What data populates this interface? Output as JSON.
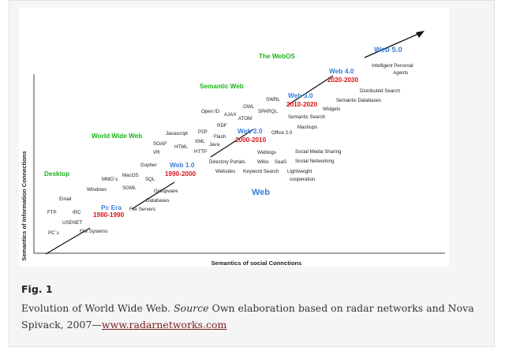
{
  "figure": {
    "number": "Fig. 1",
    "caption_part1": "Evolution of World Wide Web. ",
    "caption_source_word": "Source",
    "caption_part2": " Own elaboration based on radar networks and Nova Spivack, 2007—",
    "caption_link": "www.radarnetworks.com"
  },
  "diagram": {
    "y_axis_label": "Semantics of Information Connections",
    "x_axis_label": "Semantics of social Connctions",
    "eras": [
      {
        "name": "Pc Era",
        "years": "1980-1990"
      },
      {
        "name": "Web 1.0",
        "years": "1990-2000"
      },
      {
        "name": "Web 2.0",
        "years": "2000-2010"
      },
      {
        "name": "Web 3.0",
        "years": "2010-2020"
      },
      {
        "name": "Web 4.0",
        "years": "2020-2030"
      },
      {
        "name": "Web 5.0"
      }
    ],
    "stages": [
      "Desktop",
      "World Wide Web",
      "Semantic Web",
      "The WebOS"
    ],
    "web_label": "Web",
    "items": [
      "PC´s",
      "FTP",
      "IRC",
      "USENET",
      "Email",
      "File Systems",
      "Windows",
      "MMO´s",
      "MacOS",
      "SGML",
      "SQL",
      "Gopher",
      "File Servers",
      "Databases",
      "Groupware",
      "VR",
      "SOAP",
      "HTML",
      "XML",
      "Javascript",
      "P2P",
      "Flash",
      "HTTP",
      "Java",
      "RDF",
      "Open ID",
      "AJAX",
      "ATOM",
      "OWL",
      "SWRL",
      "SPARQL",
      "Office 2.0",
      "Directory Portals",
      "Websites",
      "Keyword Search",
      "Weblogs",
      "Wikis",
      "SaaS",
      "Lightweight",
      "cooperation",
      "Social Media Sharing",
      "Social Networking",
      "Semantic Search",
      "Mashups",
      "Widgets",
      "Semantic Databases",
      "Distributed Search",
      "Intelligent Personal",
      "Agents"
    ]
  }
}
